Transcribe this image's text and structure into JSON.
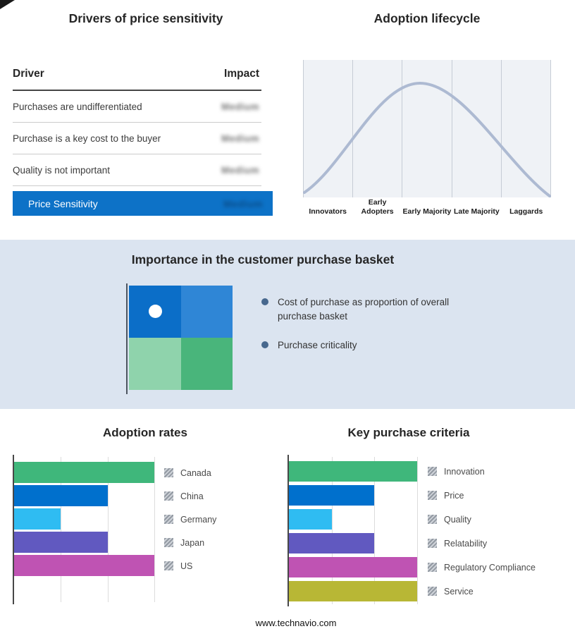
{
  "drivers": {
    "title": "Drivers of price sensitivity",
    "columns": {
      "driver": "Driver",
      "impact": "Impact"
    },
    "rows": [
      {
        "driver": "Purchases are undifferentiated",
        "impact": "Medium"
      },
      {
        "driver": "Purchase is a key cost to the buyer",
        "impact": "Medium"
      },
      {
        "driver": "Quality is not important",
        "impact": "Medium"
      }
    ],
    "highlight": {
      "driver": "Price Sensitivity",
      "impact": "Medium",
      "bg": "#0d72c7"
    }
  },
  "lifecycle": {
    "title": "Adoption lifecycle",
    "curve_color": "#adbad2",
    "stages": [
      "Innovators",
      "Early Adopters",
      "Early Majority",
      "Late Majority",
      "Laggards"
    ]
  },
  "basket": {
    "title": "Importance in the customer purchase basket",
    "band_bg": "#dbe4f0",
    "quadrants": {
      "top_left": "#0b6ec8",
      "top_right": "#2f86d6",
      "bottom_left": "#8fd3ac",
      "bottom_right": "#49b57b"
    },
    "bullets": [
      "Cost of purchase as proportion of overall purchase basket",
      "Purchase criticality"
    ]
  },
  "footer": "www.technavio.com",
  "chart_data": [
    {
      "type": "bar",
      "orientation": "horizontal",
      "title": "Adoption rates",
      "categories": [
        "Canada",
        "China",
        "Germany",
        "Japan",
        "US"
      ],
      "values": [
        3,
        2,
        1,
        2,
        3
      ],
      "xlim": [
        0,
        3
      ],
      "colors": [
        "#3fb77b",
        "#0070cd",
        "#2fbcf2",
        "#6159c0",
        "#bf53b3"
      ],
      "grid": true,
      "legend_position": "right"
    },
    {
      "type": "bar",
      "orientation": "horizontal",
      "title": "Key purchase criteria",
      "categories": [
        "Innovation",
        "Price",
        "Quality",
        "Relatability",
        "Regulatory Compliance",
        "Service"
      ],
      "values": [
        3,
        2,
        1,
        2,
        3,
        3
      ],
      "xlim": [
        0,
        3
      ],
      "colors": [
        "#3fb77b",
        "#0070cd",
        "#2fbcf2",
        "#6159c0",
        "#bf53b3",
        "#b8b735"
      ],
      "grid": true,
      "legend_position": "right"
    }
  ]
}
